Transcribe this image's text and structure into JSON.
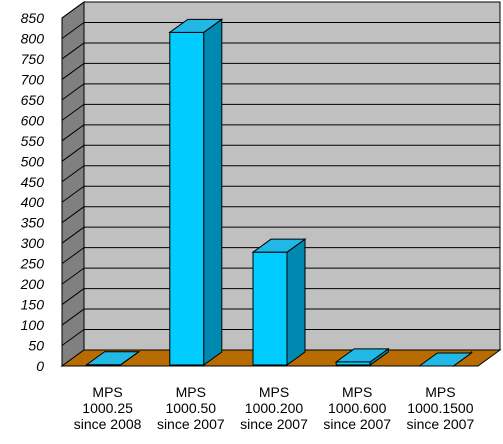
{
  "chart_data": {
    "type": "bar",
    "categories": [
      [
        "MPS",
        "1000.25",
        "since 2008"
      ],
      [
        "MPS",
        "1000.50",
        "since 2007"
      ],
      [
        "MPS",
        "1000.200",
        "since 2007"
      ],
      [
        "MPS",
        "1000.600",
        "since 2007"
      ],
      [
        "MPS",
        "1000.1500",
        "since 2007"
      ]
    ],
    "values": [
      3,
      815,
      278,
      10,
      0
    ],
    "ylim": [
      0,
      850
    ],
    "yticks": [
      0,
      50,
      100,
      150,
      200,
      250,
      300,
      350,
      400,
      450,
      500,
      550,
      600,
      650,
      700,
      750,
      800,
      850
    ],
    "grid": true,
    "three_d": true,
    "colors": {
      "bar_front": "#00ccff",
      "bar_top": "#22b8e6",
      "bar_side": "#0089b0",
      "wall": "#c0c0c0",
      "wall_side": "#808080",
      "floor": "#b86b00",
      "grid": "#000000"
    }
  }
}
